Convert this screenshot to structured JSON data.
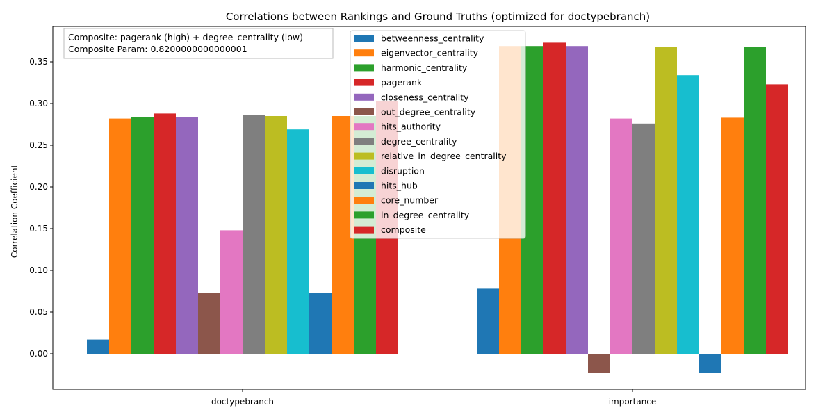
{
  "chart_data": {
    "type": "bar",
    "title": "Correlations between Rankings and Ground Truths (optimized for doctypebranch)",
    "xlabel": "",
    "ylabel": "Correlation Coefficient",
    "categories": [
      "doctypebranch",
      "importance"
    ],
    "ylim": [
      -0.042,
      0.388
    ],
    "yticks": [
      0.0,
      0.05,
      0.1,
      0.15,
      0.2,
      0.25,
      0.3,
      0.35
    ],
    "ytick_labels": [
      "0.00",
      "0.05",
      "0.10",
      "0.15",
      "0.20",
      "0.25",
      "0.30",
      "0.35"
    ],
    "grid": false,
    "legend_position": "top-center",
    "annotation": [
      "Composite: pagerank (high) + degree_centrality (low)",
      "Composite Param: 0.8200000000000001"
    ],
    "series": [
      {
        "name": "betweenness_centrality",
        "color": "#1f77b4",
        "values": [
          0.017,
          0.078
        ]
      },
      {
        "name": "eigenvector_centrality",
        "color": "#ff7f0e",
        "values": [
          0.282,
          0.369
        ]
      },
      {
        "name": "harmonic_centrality",
        "color": "#2ca02c",
        "values": [
          0.284,
          0.369
        ]
      },
      {
        "name": "pagerank",
        "color": "#d62728",
        "values": [
          0.288,
          0.373
        ]
      },
      {
        "name": "closeness_centrality",
        "color": "#9467bd",
        "values": [
          0.284,
          0.369
        ]
      },
      {
        "name": "out_degree_centrality",
        "color": "#8c564b",
        "values": [
          0.073,
          -0.023
        ]
      },
      {
        "name": "hits_authority",
        "color": "#e377c2",
        "values": [
          0.148,
          0.282
        ]
      },
      {
        "name": "degree_centrality",
        "color": "#7f7f7f",
        "values": [
          0.286,
          0.276
        ]
      },
      {
        "name": "relative_in_degree_centrality",
        "color": "#bcbd22",
        "values": [
          0.285,
          0.368
        ]
      },
      {
        "name": "disruption",
        "color": "#17becf",
        "values": [
          0.269,
          0.334
        ]
      },
      {
        "name": "hits_hub",
        "color": "#1f77b4",
        "values": [
          0.073,
          -0.023
        ]
      },
      {
        "name": "core_number",
        "color": "#ff7f0e",
        "values": [
          0.285,
          0.283
        ]
      },
      {
        "name": "in_degree_centrality",
        "color": "#2ca02c",
        "values": [
          0.285,
          0.368
        ]
      },
      {
        "name": "composite",
        "color": "#d62728",
        "values": [
          0.303,
          0.323
        ]
      }
    ]
  }
}
